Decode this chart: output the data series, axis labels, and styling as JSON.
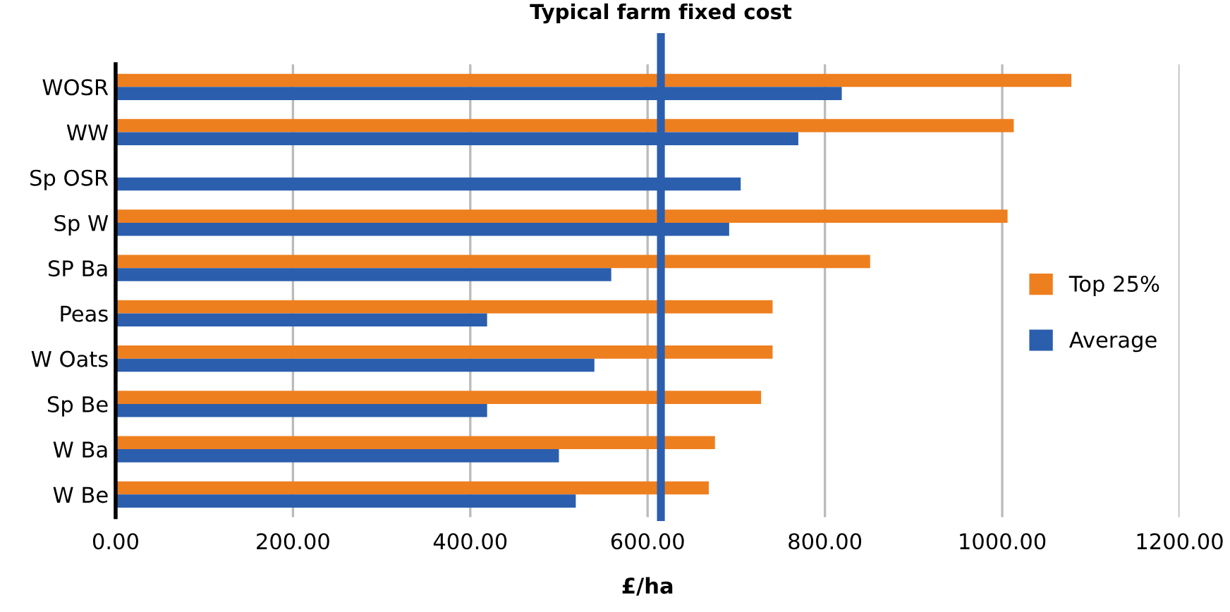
{
  "chart_data": {
    "type": "bar",
    "orientation": "horizontal",
    "xlabel": "£/ha",
    "categories": [
      "WOSR",
      "WW",
      "Sp OSR",
      "Sp W",
      "SP Ba",
      "Peas",
      "W Oats",
      "Sp Be",
      "W Ba",
      "W Be"
    ],
    "series": [
      {
        "name": "Top 25%",
        "color": "#ee7f1f",
        "values": [
          1078,
          1013,
          null,
          1006,
          851,
          741,
          741,
          728,
          676,
          669
        ]
      },
      {
        "name": "Average",
        "color": "#2b5ead",
        "values": [
          819,
          770,
          705,
          692,
          559,
          419,
          540,
          419,
          500,
          519
        ]
      }
    ],
    "xlim": [
      0,
      1200
    ],
    "xticks": [
      {
        "value": 0,
        "label": "0.00"
      },
      {
        "value": 200,
        "label": "200.00"
      },
      {
        "value": 400,
        "label": "400.00"
      },
      {
        "value": 600,
        "label": "600.00"
      },
      {
        "value": 800,
        "label": "800.00"
      },
      {
        "value": 1000,
        "label": "1000.00"
      },
      {
        "value": 1200,
        "label": "1200.00"
      }
    ],
    "ref_lines": [
      {
        "axis": "x",
        "value": 615,
        "label": "Typical farm fixed cost",
        "color": "#2b5ead"
      }
    ],
    "grid": "x",
    "legend": "right"
  }
}
